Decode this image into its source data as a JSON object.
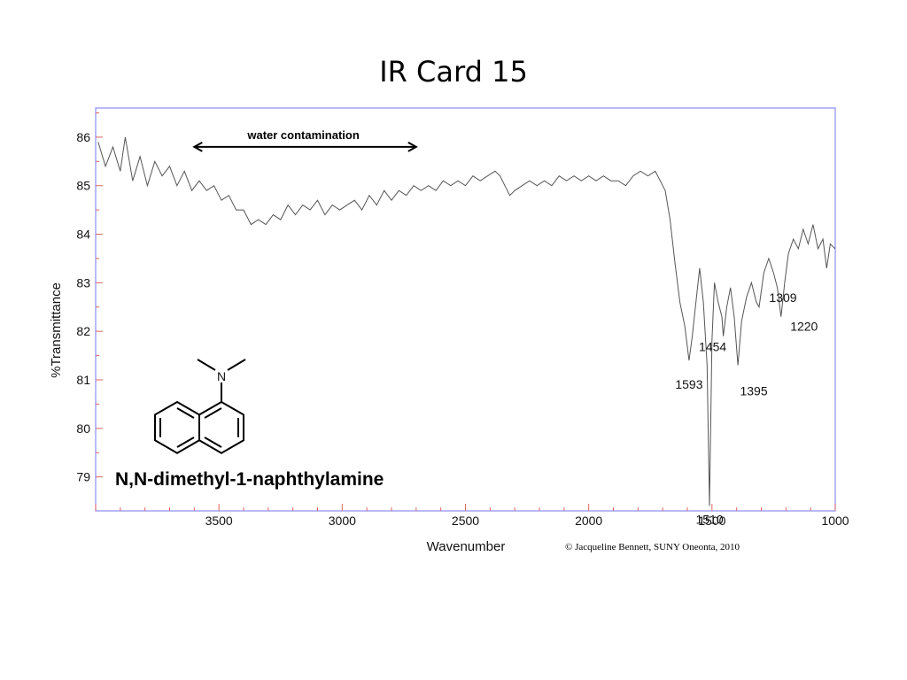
{
  "slide": {
    "title": "IR Card 15",
    "credit": "© Jacqueline Bennett, SUNY Oneonta, 2010"
  },
  "compound": {
    "name": "N,N-dimethyl-1-naphthylamine",
    "atom_label": "N",
    "structure_icon": "n-n-dimethyl-1-naphthylamine-structure-icon"
  },
  "chart_data": {
    "type": "line",
    "xlabel": "Wavenumber",
    "ylabel": "%Transmittance",
    "xlim": [
      4000,
      1000
    ],
    "ylim": [
      78.3,
      86.6
    ],
    "x_ticks": [
      3500,
      3000,
      2500,
      2000,
      1500,
      1000
    ],
    "y_ticks": [
      79,
      80,
      81,
      82,
      83,
      84,
      85,
      86
    ],
    "grid": false,
    "line_color": "#555555",
    "frame_color": "#8c8cf0",
    "tick_color": "#e06666",
    "annotation": {
      "text": "water contamination",
      "x_start": 3600,
      "x_end": 2700,
      "y": 85.8
    },
    "peaks": [
      {
        "label": "1593",
        "x": 1593,
        "y": 81.4
      },
      {
        "label": "1454",
        "x": 1454,
        "y": 81.9
      },
      {
        "label": "1395",
        "x": 1395,
        "y": 81.3
      },
      {
        "label": "1309",
        "x": 1309,
        "y": 82.5
      },
      {
        "label": "1220",
        "x": 1220,
        "y": 82.3
      },
      {
        "label": "1510",
        "x": 1510,
        "y": 78.4
      }
    ],
    "series": [
      {
        "values": [
          [
            3990,
            85.9
          ],
          [
            3960,
            85.4
          ],
          [
            3930,
            85.8
          ],
          [
            3900,
            85.3
          ],
          [
            3880,
            86.0
          ],
          [
            3850,
            85.1
          ],
          [
            3820,
            85.6
          ],
          [
            3790,
            85.0
          ],
          [
            3760,
            85.5
          ],
          [
            3730,
            85.2
          ],
          [
            3700,
            85.4
          ],
          [
            3670,
            85.0
          ],
          [
            3640,
            85.3
          ],
          [
            3610,
            84.9
          ],
          [
            3580,
            85.1
          ],
          [
            3550,
            84.9
          ],
          [
            3520,
            85.0
          ],
          [
            3490,
            84.7
          ],
          [
            3460,
            84.8
          ],
          [
            3430,
            84.5
          ],
          [
            3400,
            84.5
          ],
          [
            3370,
            84.2
          ],
          [
            3340,
            84.3
          ],
          [
            3310,
            84.2
          ],
          [
            3280,
            84.4
          ],
          [
            3250,
            84.3
          ],
          [
            3220,
            84.6
          ],
          [
            3190,
            84.4
          ],
          [
            3160,
            84.6
          ],
          [
            3130,
            84.5
          ],
          [
            3100,
            84.7
          ],
          [
            3070,
            84.4
          ],
          [
            3040,
            84.6
          ],
          [
            3010,
            84.5
          ],
          [
            2980,
            84.6
          ],
          [
            2950,
            84.7
          ],
          [
            2920,
            84.5
          ],
          [
            2890,
            84.8
          ],
          [
            2860,
            84.6
          ],
          [
            2830,
            84.9
          ],
          [
            2800,
            84.7
          ],
          [
            2770,
            84.9
          ],
          [
            2740,
            84.8
          ],
          [
            2710,
            85.0
          ],
          [
            2680,
            84.9
          ],
          [
            2650,
            85.0
          ],
          [
            2620,
            84.9
          ],
          [
            2590,
            85.1
          ],
          [
            2560,
            85.0
          ],
          [
            2530,
            85.1
          ],
          [
            2500,
            85.0
          ],
          [
            2470,
            85.2
          ],
          [
            2440,
            85.1
          ],
          [
            2410,
            85.2
          ],
          [
            2380,
            85.3
          ],
          [
            2360,
            85.2
          ],
          [
            2340,
            85.0
          ],
          [
            2320,
            84.8
          ],
          [
            2300,
            84.9
          ],
          [
            2270,
            85.0
          ],
          [
            2240,
            85.1
          ],
          [
            2210,
            85.0
          ],
          [
            2180,
            85.1
          ],
          [
            2150,
            85.0
          ],
          [
            2120,
            85.2
          ],
          [
            2090,
            85.1
          ],
          [
            2060,
            85.2
          ],
          [
            2030,
            85.1
          ],
          [
            2000,
            85.2
          ],
          [
            1970,
            85.1
          ],
          [
            1940,
            85.2
          ],
          [
            1910,
            85.1
          ],
          [
            1880,
            85.1
          ],
          [
            1850,
            85.0
          ],
          [
            1820,
            85.2
          ],
          [
            1790,
            85.3
          ],
          [
            1760,
            85.2
          ],
          [
            1730,
            85.3
          ],
          [
            1710,
            85.1
          ],
          [
            1690,
            84.9
          ],
          [
            1670,
            84.3
          ],
          [
            1650,
            83.4
          ],
          [
            1630,
            82.6
          ],
          [
            1610,
            82.1
          ],
          [
            1593,
            81.4
          ],
          [
            1580,
            81.9
          ],
          [
            1565,
            82.6
          ],
          [
            1550,
            83.3
          ],
          [
            1535,
            82.6
          ],
          [
            1520,
            81.3
          ],
          [
            1510,
            78.4
          ],
          [
            1500,
            81.8
          ],
          [
            1490,
            83.0
          ],
          [
            1475,
            82.6
          ],
          [
            1460,
            82.3
          ],
          [
            1454,
            81.9
          ],
          [
            1440,
            82.5
          ],
          [
            1425,
            82.9
          ],
          [
            1410,
            82.3
          ],
          [
            1395,
            81.3
          ],
          [
            1380,
            82.2
          ],
          [
            1360,
            82.7
          ],
          [
            1340,
            83.0
          ],
          [
            1320,
            82.6
          ],
          [
            1309,
            82.5
          ],
          [
            1290,
            83.2
          ],
          [
            1270,
            83.5
          ],
          [
            1250,
            83.2
          ],
          [
            1235,
            82.9
          ],
          [
            1220,
            82.3
          ],
          [
            1205,
            83.0
          ],
          [
            1190,
            83.6
          ],
          [
            1170,
            83.9
          ],
          [
            1150,
            83.7
          ],
          [
            1130,
            84.1
          ],
          [
            1110,
            83.8
          ],
          [
            1090,
            84.2
          ],
          [
            1070,
            83.7
          ],
          [
            1050,
            83.9
          ],
          [
            1035,
            83.3
          ],
          [
            1020,
            83.8
          ],
          [
            1000,
            83.7
          ]
        ]
      }
    ]
  }
}
